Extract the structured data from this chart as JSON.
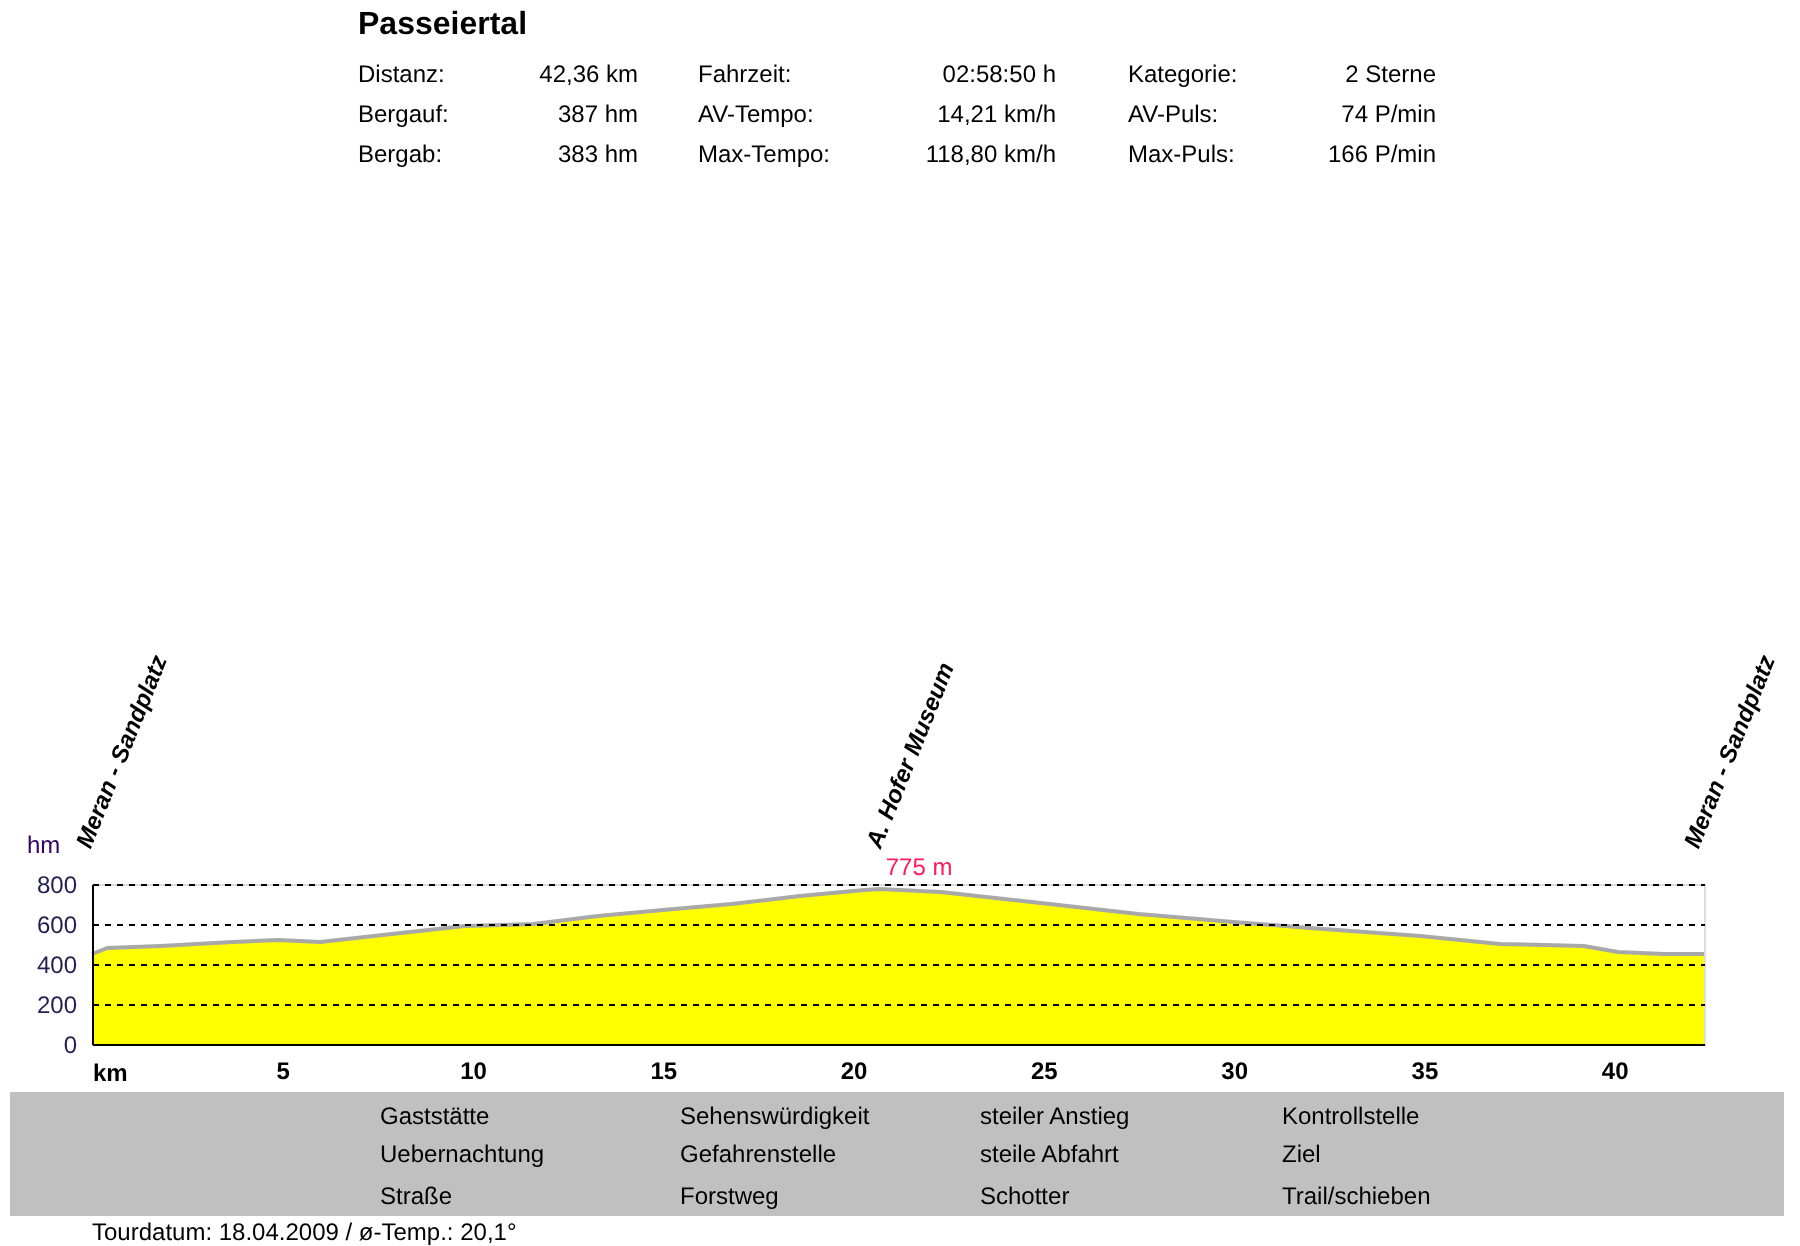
{
  "chart_data": {
    "type": "area",
    "title": "Passeiertal",
    "xlabel": "km",
    "ylabel": "hm",
    "x": [
      0,
      0.4,
      1.8,
      3.7,
      4.9,
      6.0,
      7.4,
      9.8,
      11.6,
      13.3,
      15.0,
      16.8,
      18.6,
      20.3,
      20.7,
      22.3,
      24.7,
      27.5,
      30.0,
      32.0,
      34.9,
      37.0,
      39.2,
      40.1,
      41.3,
      42.2,
      42.36
    ],
    "series": [
      {
        "color": "#ffff00",
        "values": [
          450,
          480,
          490,
          510,
          520,
          510,
          540,
          590,
          600,
          640,
          670,
          700,
          740,
          770,
          775,
          760,
          710,
          650,
          610,
          580,
          540,
          500,
          490,
          460,
          450,
          450,
          450
        ]
      }
    ],
    "xlim": [
      0,
      42.36
    ],
    "xticks": [
      5,
      10,
      15,
      20,
      25,
      30,
      35,
      40
    ],
    "ylim": [
      0,
      800
    ],
    "yticks": [
      0,
      200,
      400,
      600,
      800
    ],
    "grid": "y",
    "annotations": [
      "Distanz:",
      "42,36 km",
      "Fahrzeit:",
      "02:58:50 h",
      "Kategorie:",
      "2 Sterne",
      "Bergauf:",
      "387 hm",
      "AV-Tempo:",
      "14,21 km/h",
      "AV-Puls:",
      "74 P/min",
      "Bergab:",
      "383 hm",
      "Max-Tempo:",
      "118,80 km/h",
      "Max-Puls:",
      "166 P/min",
      "Meran - Sandplatz",
      "A. Hofer Museum",
      "Meran - Sandplatz",
      {
        "text": "775 m",
        "x": 20.7,
        "y": 775
      },
      "Gaststätte",
      "Sehenswürdigkeit",
      "steiler Anstieg",
      "Kontrollstelle",
      "Uebernachtung",
      "Gefahrenstelle",
      "steile Abfahrt",
      "Ziel",
      "Straße",
      "Forstweg",
      "Schotter",
      "Trail/schieben",
      "Tourdatum: 18.04.2009 / ø-Temp.: 20,1°"
    ]
  }
}
